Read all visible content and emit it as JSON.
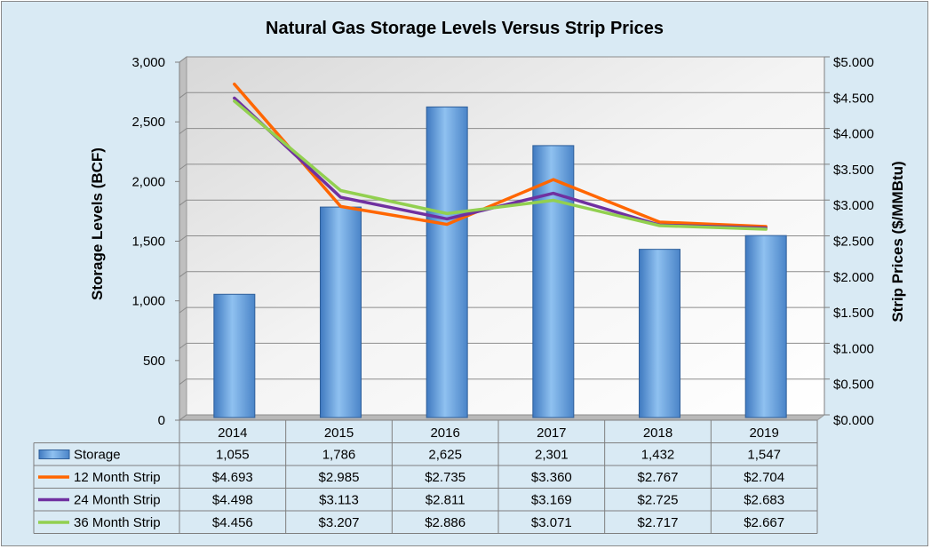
{
  "chart_data": {
    "type": "bar",
    "title": "Natural Gas Storage Levels Versus Strip Prices",
    "ylabel": "Storage Levels (BCF)",
    "y2label": "Strip Prices ($/MMBtu)",
    "categories": [
      "2014",
      "2015",
      "2016",
      "2017",
      "2018",
      "2019"
    ],
    "ylim": [
      0,
      3000
    ],
    "y2lim": [
      0,
      5.0
    ],
    "yticks": [
      "0",
      "500",
      "1,000",
      "1,500",
      "2,000",
      "2,500",
      "3,000"
    ],
    "y2ticks": [
      "$0.000",
      "$0.500",
      "$1.000",
      "$1.500",
      "$2.000",
      "$2.500",
      "$3.000",
      "$3.500",
      "$4.000",
      "$4.500",
      "$5.000"
    ],
    "bar_series": {
      "name": "Storage",
      "values": [
        1055,
        1786,
        2625,
        2301,
        1432,
        1547
      ],
      "labels": [
        "1,055",
        "1,786",
        "2,625",
        "2,301",
        "1,432",
        "1,547"
      ],
      "color": "#5b9bd5"
    },
    "line_series": [
      {
        "name": "12 Month Strip",
        "values": [
          4.693,
          2.985,
          2.735,
          3.36,
          2.767,
          2.704
        ],
        "labels": [
          "$4.693",
          "$2.985",
          "$2.735",
          "$3.360",
          "$2.767",
          "$2.704"
        ],
        "color": "#ff6600"
      },
      {
        "name": "24 Month Strip",
        "values": [
          4.498,
          3.113,
          2.811,
          3.169,
          2.725,
          2.683
        ],
        "labels": [
          "$4.498",
          "$3.113",
          "$2.811",
          "$3.169",
          "$2.725",
          "$2.683"
        ],
        "color": "#7030a0"
      },
      {
        "name": "36 Month Strip",
        "values": [
          4.456,
          3.207,
          2.886,
          3.071,
          2.717,
          2.667
        ],
        "labels": [
          "$4.456",
          "$3.207",
          "$2.886",
          "$3.071",
          "$2.717",
          "$2.667"
        ],
        "color": "#92d050"
      }
    ],
    "grid": true,
    "legend": "data-table"
  }
}
